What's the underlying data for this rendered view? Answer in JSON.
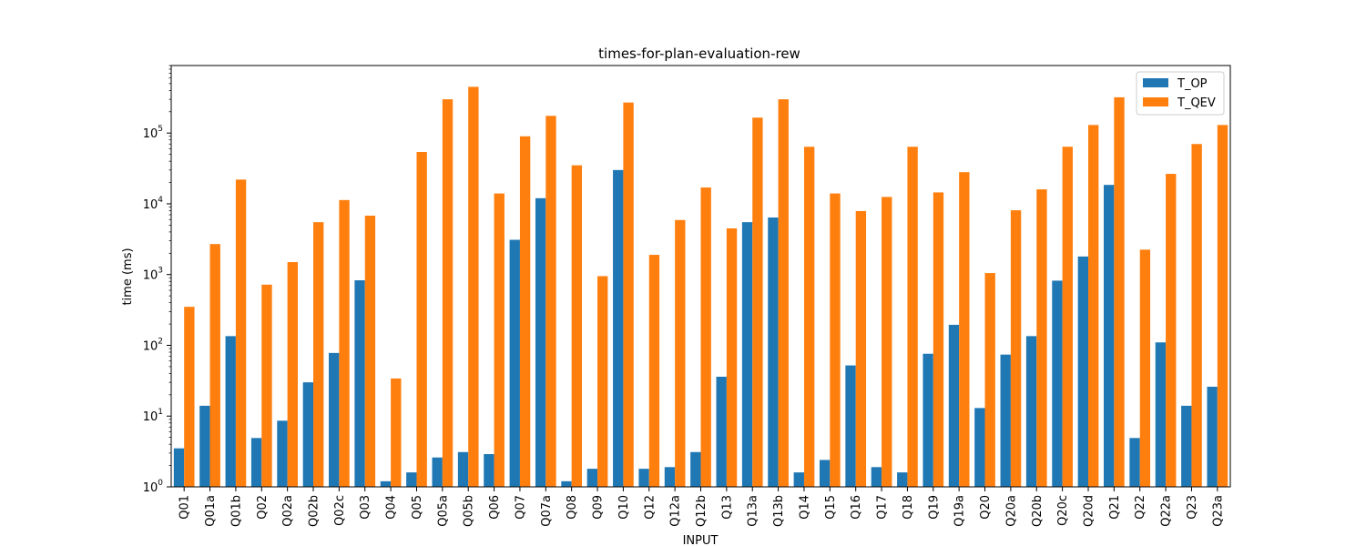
{
  "chart_data": {
    "type": "bar",
    "title": "times-for-plan-evaluation-rew",
    "xlabel": "INPUT",
    "ylabel": "time (ms)",
    "yscale": "log",
    "ylim": [
      1,
      900000
    ],
    "yticks": [
      {
        "value": 1,
        "base": "10",
        "exp": "0"
      },
      {
        "value": 10,
        "base": "10",
        "exp": "1"
      },
      {
        "value": 100,
        "base": "10",
        "exp": "2"
      },
      {
        "value": 1000,
        "base": "10",
        "exp": "3"
      },
      {
        "value": 10000,
        "base": "10",
        "exp": "4"
      },
      {
        "value": 100000,
        "base": "10",
        "exp": "5"
      }
    ],
    "legend_position": "top-right",
    "grid": false,
    "categories": [
      "Q01",
      "Q01a",
      "Q01b",
      "Q02",
      "Q02a",
      "Q02b",
      "Q02c",
      "Q03",
      "Q04",
      "Q05",
      "Q05a",
      "Q05b",
      "Q06",
      "Q07",
      "Q07a",
      "Q08",
      "Q09",
      "Q10",
      "Q12",
      "Q12a",
      "Q12b",
      "Q13",
      "Q13a",
      "Q13b",
      "Q14",
      "Q15",
      "Q16",
      "Q17",
      "Q18",
      "Q19",
      "Q19a",
      "Q20",
      "Q20a",
      "Q20b",
      "Q20c",
      "Q20d",
      "Q21",
      "Q22",
      "Q22a",
      "Q23",
      "Q23a"
    ],
    "series": [
      {
        "name": "T_OP",
        "color": "#1f77b4",
        "values": [
          3.5,
          14,
          135,
          4.9,
          8.6,
          30,
          78,
          830,
          1.2,
          1.6,
          2.6,
          3.1,
          2.9,
          3100,
          12000,
          1.2,
          1.8,
          30000,
          1.8,
          1.9,
          3.1,
          36,
          5500,
          6400,
          1.6,
          2.4,
          52,
          1.9,
          1.6,
          76,
          195,
          13,
          74,
          135,
          820,
          1800,
          18500,
          4.9,
          110,
          14,
          26
        ]
      },
      {
        "name": "T_QEV",
        "color": "#ff7f0e",
        "values": [
          350,
          2700,
          22000,
          720,
          1500,
          5500,
          11300,
          6800,
          34,
          54000,
          300000,
          450000,
          14000,
          90000,
          175000,
          35000,
          950,
          270000,
          1900,
          5900,
          17000,
          4500,
          165000,
          300000,
          64000,
          14000,
          7900,
          12500,
          64000,
          14500,
          28000,
          1050,
          8100,
          16000,
          64000,
          130000,
          320000,
          2250,
          26500,
          70000,
          130000
        ]
      }
    ]
  }
}
